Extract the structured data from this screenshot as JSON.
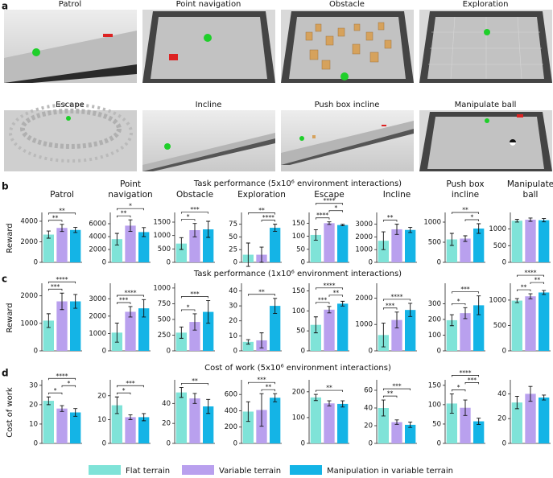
{
  "figure": {
    "panels": [
      "a",
      "b",
      "c",
      "d"
    ],
    "row_titles": [
      "Task performance (5x10⁶ environment interactions)",
      "Task performance (1x10⁶ environment interactions)",
      "Cost of work (5x10⁶ environment interactions)"
    ]
  },
  "scenes": [
    "Patrol",
    "Point navigation",
    "Obstacle",
    "Exploration",
    "Escape",
    "Incline",
    "Push box incline",
    "Manipulate ball"
  ],
  "legend": [
    {
      "name": "Flat terrain",
      "color": "#7fe3d8"
    },
    {
      "name": "Variable terrain",
      "color": "#b9a0ee"
    },
    {
      "name": "Manipulation in variable terrain",
      "color": "#14b4e6"
    }
  ],
  "chart_data": [
    {
      "type": "bar",
      "title": [
        "Patrol"
      ],
      "ylabel": "Reward",
      "values": [
        2700,
        3350,
        3150
      ],
      "errors": [
        350,
        350,
        250
      ],
      "ylim": [
        0,
        4700
      ],
      "yticks": [
        0,
        2000,
        4000
      ],
      "significance": [
        {
          "from": 0,
          "to": 1,
          "label": "**"
        },
        {
          "from": 0,
          "to": 2,
          "label": "**"
        }
      ]
    },
    {
      "type": "bar",
      "title": [
        "Point",
        "navigation"
      ],
      "values": [
        3600,
        5700,
        4700
      ],
      "errors": [
        900,
        900,
        700
      ],
      "ylim": [
        0,
        7500
      ],
      "yticks": [
        0,
        2000,
        4000,
        6000
      ],
      "significance": [
        {
          "from": 0,
          "to": 1,
          "label": "**"
        },
        {
          "from": 0,
          "to": 2,
          "label": "*"
        }
      ]
    },
    {
      "type": "bar",
      "title": [
        "Obstacle"
      ],
      "values": [
        700,
        1200,
        1230
      ],
      "errors": [
        220,
        250,
        300
      ],
      "ylim": [
        0,
        1800
      ],
      "yticks": [
        0,
        500,
        1000,
        1500
      ],
      "significance": [
        {
          "from": 0,
          "to": 1,
          "label": "*"
        },
        {
          "from": 0,
          "to": 2,
          "label": "***"
        }
      ]
    },
    {
      "type": "bar",
      "title": [
        "Exploration"
      ],
      "values": [
        15,
        15,
        68
      ],
      "errors": [
        23,
        15,
        7
      ],
      "ylim": [
        0,
        95
      ],
      "yticks": [
        0,
        25,
        50,
        75
      ],
      "significance": [
        {
          "from": 1,
          "to": 2,
          "label": "****"
        },
        {
          "from": 0,
          "to": 2,
          "label": "**"
        }
      ]
    },
    {
      "type": "bar",
      "title": [
        "Escape"
      ],
      "values": [
        105,
        150,
        143
      ],
      "errors": [
        20,
        5,
        3
      ],
      "ylim": [
        0,
        185
      ],
      "yticks": [
        0,
        50,
        100,
        150
      ],
      "significance": [
        {
          "from": 0,
          "to": 1,
          "label": "****"
        },
        {
          "from": 1,
          "to": 2,
          "label": "*"
        },
        {
          "from": 0,
          "to": 2,
          "label": "****"
        }
      ]
    },
    {
      "type": "bar",
      "title": [
        "Incline"
      ],
      "values": [
        1700,
        2600,
        2550
      ],
      "errors": [
        700,
        400,
        200
      ],
      "ylim": [
        0,
        3800
      ],
      "yticks": [
        0,
        1000,
        2000,
        3000
      ],
      "significance": [
        {
          "from": 0,
          "to": 1,
          "label": "**"
        }
      ]
    },
    {
      "type": "bar",
      "title": [
        "Push box",
        "incline"
      ],
      "values": [
        570,
        590,
        840
      ],
      "errors": [
        150,
        70,
        120
      ],
      "ylim": [
        0,
        1200
      ],
      "yticks": [
        0,
        500,
        1000
      ],
      "significance": [
        {
          "from": 1,
          "to": 2,
          "label": "*"
        },
        {
          "from": 0,
          "to": 2,
          "label": "**"
        }
      ]
    },
    {
      "type": "bar",
      "title": [
        "Manipulate",
        "ball"
      ],
      "values": [
        1250,
        1280,
        1265
      ],
      "errors": [
        40,
        50,
        50
      ],
      "ylim": [
        0,
        1450
      ],
      "yticks": [
        0,
        500,
        1000
      ],
      "significance": []
    },
    {
      "type": "bar",
      "ylabel": "Reward",
      "values": [
        1100,
        1800,
        1800
      ],
      "errors": [
        250,
        300,
        250
      ],
      "ylim": [
        0,
        2400
      ],
      "yticks": [
        0,
        1000,
        2000
      ],
      "significance": [
        {
          "from": 0,
          "to": 1,
          "label": "***"
        },
        {
          "from": 0,
          "to": 2,
          "label": "****"
        }
      ]
    },
    {
      "type": "bar",
      "values": [
        1050,
        2250,
        2450
      ],
      "errors": [
        550,
        300,
        500
      ],
      "ylim": [
        0,
        3800
      ],
      "yticks": [
        0,
        1000,
        2000,
        3000
      ],
      "significance": [
        {
          "from": 0,
          "to": 1,
          "label": "***"
        },
        {
          "from": 0,
          "to": 2,
          "label": "****"
        }
      ]
    },
    {
      "type": "bar",
      "values": [
        290,
        460,
        620
      ],
      "errors": [
        90,
        130,
        180
      ],
      "ylim": [
        0,
        1050
      ],
      "yticks": [
        0,
        250,
        500,
        750,
        1000
      ],
      "significance": [
        {
          "from": 0,
          "to": 1,
          "label": "*"
        },
        {
          "from": 0,
          "to": 2,
          "label": "***"
        }
      ]
    },
    {
      "type": "bar",
      "values": [
        6,
        7,
        30
      ],
      "errors": [
        1.5,
        5,
        5
      ],
      "ylim": [
        0,
        44
      ],
      "yticks": [
        0,
        10,
        20,
        30,
        40
      ],
      "significance": [
        {
          "from": 0,
          "to": 2,
          "label": "**"
        }
      ]
    },
    {
      "type": "bar",
      "values": [
        65,
        103,
        118
      ],
      "errors": [
        20,
        8,
        6
      ],
      "ylim": [
        0,
        165
      ],
      "yticks": [
        0,
        50,
        100,
        150
      ],
      "significance": [
        {
          "from": 0,
          "to": 1,
          "label": "***"
        },
        {
          "from": 1,
          "to": 2,
          "label": "**"
        },
        {
          "from": 0,
          "to": 2,
          "label": "****"
        }
      ]
    },
    {
      "type": "bar",
      "values": [
        600,
        1170,
        1550
      ],
      "errors": [
        450,
        300,
        250
      ],
      "ylim": [
        0,
        2500
      ],
      "yticks": [
        0,
        1000,
        2000
      ],
      "significance": [
        {
          "from": 0,
          "to": 1,
          "label": "***"
        },
        {
          "from": 0,
          "to": 2,
          "label": "****"
        }
      ]
    },
    {
      "type": "bar",
      "values": [
        195,
        240,
        290
      ],
      "errors": [
        35,
        35,
        60
      ],
      "ylim": [
        0,
        420
      ],
      "yticks": [
        0,
        100,
        200,
        300
      ],
      "significance": [
        {
          "from": 0,
          "to": 1,
          "label": "*"
        },
        {
          "from": 0,
          "to": 2,
          "label": "***"
        }
      ]
    },
    {
      "type": "bar",
      "values": [
        990,
        1075,
        1150
      ],
      "errors": [
        40,
        50,
        40
      ],
      "ylim": [
        0,
        1300
      ],
      "yticks": [
        0,
        500,
        1000
      ],
      "significance": [
        {
          "from": 0,
          "to": 1,
          "label": "**"
        },
        {
          "from": 1,
          "to": 2,
          "label": "**"
        },
        {
          "from": 0,
          "to": 2,
          "label": "****"
        }
      ]
    },
    {
      "type": "bar",
      "ylabel": "Cost of work",
      "values": [
        22,
        18,
        16
      ],
      "errors": [
        2,
        1.5,
        2
      ],
      "ylim": [
        0,
        32
      ],
      "yticks": [
        0,
        10,
        20,
        30
      ],
      "significance": [
        {
          "from": 0,
          "to": 1,
          "label": "*"
        },
        {
          "from": 1,
          "to": 2,
          "label": "*"
        },
        {
          "from": 0,
          "to": 2,
          "label": "****"
        }
      ]
    },
    {
      "type": "bar",
      "values": [
        16,
        11,
        11
      ],
      "errors": [
        3.5,
        1,
        1.5
      ],
      "ylim": [
        0,
        26
      ],
      "yticks": [
        0,
        10,
        20
      ],
      "significance": [
        {
          "from": 0,
          "to": 1,
          "label": "*"
        },
        {
          "from": 0,
          "to": 2,
          "label": "***"
        }
      ]
    },
    {
      "type": "bar",
      "values": [
        51,
        45,
        37
      ],
      "errors": [
        5,
        5,
        7
      ],
      "ylim": [
        0,
        62
      ],
      "yticks": [
        0,
        20,
        40
      ],
      "significance": [
        {
          "from": 0,
          "to": 2,
          "label": "**"
        }
      ]
    },
    {
      "type": "bar",
      "values": [
        390,
        410,
        560
      ],
      "errors": [
        120,
        200,
        50
      ],
      "ylim": [
        0,
        760
      ],
      "yticks": [
        0,
        200,
        400,
        600
      ],
      "significance": [
        {
          "from": 1,
          "to": 2,
          "label": "**"
        },
        {
          "from": 0,
          "to": 2,
          "label": "***"
        }
      ]
    },
    {
      "type": "bar",
      "values": [
        178,
        155,
        153
      ],
      "errors": [
        12,
        10,
        12
      ],
      "ylim": [
        0,
        240
      ],
      "yticks": [
        0,
        100,
        200
      ],
      "significance": [
        {
          "from": 0,
          "to": 2,
          "label": "**"
        }
      ]
    },
    {
      "type": "bar",
      "values": [
        40,
        24,
        21
      ],
      "errors": [
        9,
        2.5,
        3
      ],
      "ylim": [
        0,
        70
      ],
      "yticks": [
        0,
        20,
        40,
        60
      ],
      "significance": [
        {
          "from": 0,
          "to": 1,
          "label": "**"
        },
        {
          "from": 0,
          "to": 2,
          "label": "***"
        }
      ]
    },
    {
      "type": "bar",
      "values": [
        103,
        92,
        57
      ],
      "errors": [
        25,
        20,
        8
      ],
      "ylim": [
        0,
        160
      ],
      "yticks": [
        0,
        50,
        100,
        150
      ],
      "significance": [
        {
          "from": 0,
          "to": 1,
          "label": "*"
        },
        {
          "from": 1,
          "to": 2,
          "label": "***"
        },
        {
          "from": 0,
          "to": 2,
          "label": "****"
        }
      ]
    },
    {
      "type": "bar",
      "values": [
        33,
        40,
        37
      ],
      "errors": [
        5,
        6,
        2
      ],
      "ylim": [
        0,
        50
      ],
      "yticks": [
        0,
        20,
        40
      ],
      "significance": []
    }
  ]
}
